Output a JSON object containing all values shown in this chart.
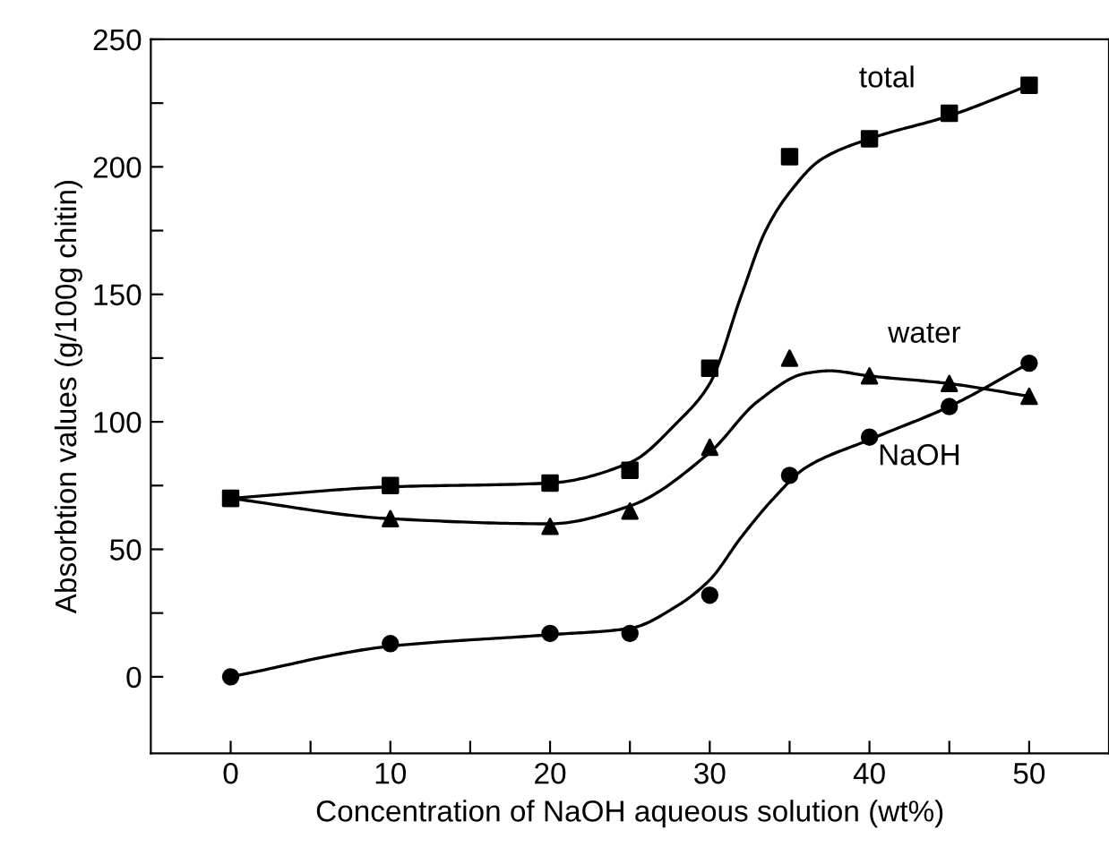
{
  "chart_data": {
    "type": "scatter",
    "xlabel": "Concentration of NaOH aqueous solution (wt%)",
    "ylabel": "Absorbtion values (g/100g chitin)",
    "xlim": [
      -5,
      55
    ],
    "ylim": [
      -30,
      250
    ],
    "xticks": [
      0,
      {
        "value": 5,
        "label": null
      },
      10,
      {
        "value": 15,
        "label": null
      },
      20,
      {
        "value": 25,
        "label": null
      },
      30,
      {
        "value": 35,
        "label": null
      },
      40,
      {
        "value": 45,
        "label": null
      },
      50
    ],
    "yticks": [
      0,
      {
        "value": 25,
        "label": null
      },
      50,
      {
        "value": 75,
        "label": null
      },
      100,
      {
        "value": 125,
        "label": null
      },
      150,
      {
        "value": 175,
        "label": null
      },
      200,
      {
        "value": 225,
        "label": null
      },
      250
    ],
    "grid": false,
    "legend": false,
    "series": [
      {
        "name": "total",
        "marker": "square",
        "color": "#000000",
        "x": [
          0,
          10,
          20,
          25,
          30,
          35,
          40,
          45,
          50
        ],
        "values": [
          70,
          75,
          76,
          81,
          121,
          204,
          211,
          221,
          232
        ]
      },
      {
        "name": "water",
        "marker": "triangle",
        "color": "#000000",
        "x": [
          0,
          10,
          20,
          25,
          30,
          35,
          40,
          45,
          50
        ],
        "values": [
          70,
          62,
          59,
          65,
          90,
          125,
          118,
          115,
          110
        ]
      },
      {
        "name": "NaOH",
        "marker": "circle",
        "color": "#000000",
        "x": [
          0,
          10,
          20,
          25,
          30,
          35,
          40,
          45,
          50
        ],
        "values": [
          0,
          13,
          17,
          17,
          32,
          79,
          94,
          106,
          123
        ]
      },
      {
        "type": "line",
        "marker": "none",
        "line_style": "solid",
        "color": "#000000",
        "x": [
          0,
          10,
          20,
          25,
          28,
          30,
          32,
          33.5,
          35,
          37,
          40,
          45,
          50
        ],
        "values": [
          70,
          74.5,
          76,
          84,
          100,
          115,
          150,
          175,
          190,
          203,
          211,
          220,
          232
        ]
      },
      {
        "type": "line",
        "marker": "none",
        "line_style": "solid",
        "color": "#000000",
        "x": [
          0,
          10,
          20,
          25,
          30,
          33,
          36,
          37.5,
          40,
          45,
          50
        ],
        "values": [
          70,
          62,
          60,
          67,
          88,
          108,
          119,
          120,
          118,
          115,
          110
        ]
      },
      {
        "type": "line",
        "marker": "none",
        "line_style": "solid",
        "color": "#000000",
        "x": [
          0,
          10,
          20,
          25,
          28,
          30,
          32,
          34,
          36,
          40,
          45,
          50
        ],
        "values": [
          0,
          12,
          16.5,
          19,
          28,
          38,
          55,
          70,
          82,
          93,
          106,
          123
        ]
      }
    ]
  }
}
